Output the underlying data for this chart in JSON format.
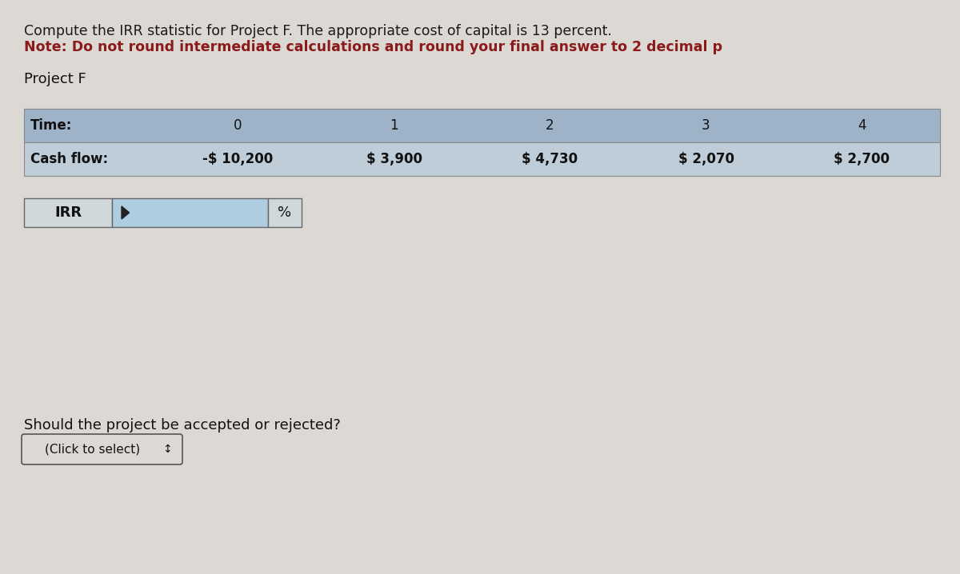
{
  "title_line1": "Compute the IRR statistic for Project F. The appropriate cost of capital is 13 percent.",
  "title_line2": "Note: Do not round intermediate calculations and round your final answer to 2 decimal p",
  "project_label": "Project F",
  "time_label": "Time:",
  "cashflow_label": "Cash flow:",
  "times": [
    "0",
    "1",
    "2",
    "3",
    "4"
  ],
  "cashflows": [
    "-$ 10,200",
    "$ 3,900",
    "$ 4,730",
    "$ 2,070",
    "$ 2,700"
  ],
  "irr_label": "IRR",
  "percent_label": "%",
  "question": "Should the project be accepted or rejected?",
  "dropdown_label": "(Click to select)",
  "table_header_bg": "#9eb3c8",
  "table_row_bg": "#bfcdd8",
  "irr_box_bg": "#aecde0",
  "irr_label_bg": "#d0d8dc",
  "irr_pct_bg": "#d0d8dc",
  "page_bg": "#dcd9d4",
  "title1_color": "#1a1a1a",
  "title2_color": "#8b1a1a",
  "text_color": "#111111",
  "table_border_color": "#888888"
}
